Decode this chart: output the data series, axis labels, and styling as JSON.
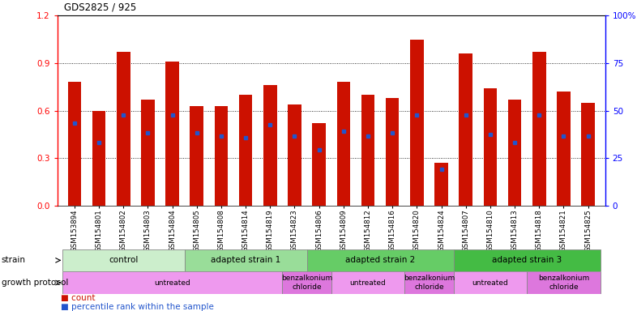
{
  "title": "GDS2825 / 925",
  "samples": [
    "GSM153894",
    "GSM154801",
    "GSM154802",
    "GSM154803",
    "GSM154804",
    "GSM154805",
    "GSM154808",
    "GSM154814",
    "GSM154819",
    "GSM154823",
    "GSM154806",
    "GSM154809",
    "GSM154812",
    "GSM154816",
    "GSM154820",
    "GSM154824",
    "GSM154807",
    "GSM154810",
    "GSM154813",
    "GSM154818",
    "GSM154821",
    "GSM154825"
  ],
  "bar_heights": [
    0.78,
    0.6,
    0.97,
    0.67,
    0.91,
    0.63,
    0.63,
    0.7,
    0.76,
    0.64,
    0.52,
    0.78,
    0.7,
    0.68,
    1.05,
    0.27,
    0.96,
    0.74,
    0.67,
    0.97,
    0.72,
    0.65
  ],
  "blue_dot_y": [
    0.52,
    0.4,
    0.57,
    0.46,
    0.57,
    0.46,
    0.44,
    0.43,
    0.51,
    0.44,
    0.35,
    0.47,
    0.44,
    0.46,
    0.57,
    0.23,
    0.57,
    0.45,
    0.4,
    0.57,
    0.44,
    0.44
  ],
  "ylim_left": [
    0,
    1.2
  ],
  "ylim_right": [
    0,
    100
  ],
  "yticks_left": [
    0,
    0.3,
    0.6,
    0.9,
    1.2
  ],
  "yticks_right": [
    0,
    25,
    50,
    75,
    100
  ],
  "bar_color": "#cc1100",
  "dot_color": "#2255cc",
  "bg_color": "#ffffff",
  "strain_groups": [
    {
      "label": "control",
      "start": 0,
      "end": 5,
      "color": "#cceecc"
    },
    {
      "label": "adapted strain 1",
      "start": 5,
      "end": 10,
      "color": "#99dd99"
    },
    {
      "label": "adapted strain 2",
      "start": 10,
      "end": 16,
      "color": "#66cc66"
    },
    {
      "label": "adapted strain 3",
      "start": 16,
      "end": 22,
      "color": "#44bb44"
    }
  ],
  "protocol_groups": [
    {
      "label": "untreated",
      "start": 0,
      "end": 9,
      "color": "#ee99ee"
    },
    {
      "label": "benzalkonium\nchloride",
      "start": 9,
      "end": 11,
      "color": "#dd77dd"
    },
    {
      "label": "untreated",
      "start": 11,
      "end": 14,
      "color": "#ee99ee"
    },
    {
      "label": "benzalkonium\nchloride",
      "start": 14,
      "end": 16,
      "color": "#dd77dd"
    },
    {
      "label": "untreated",
      "start": 16,
      "end": 19,
      "color": "#ee99ee"
    },
    {
      "label": "benzalkonium\nchloride",
      "start": 19,
      "end": 22,
      "color": "#dd77dd"
    }
  ]
}
